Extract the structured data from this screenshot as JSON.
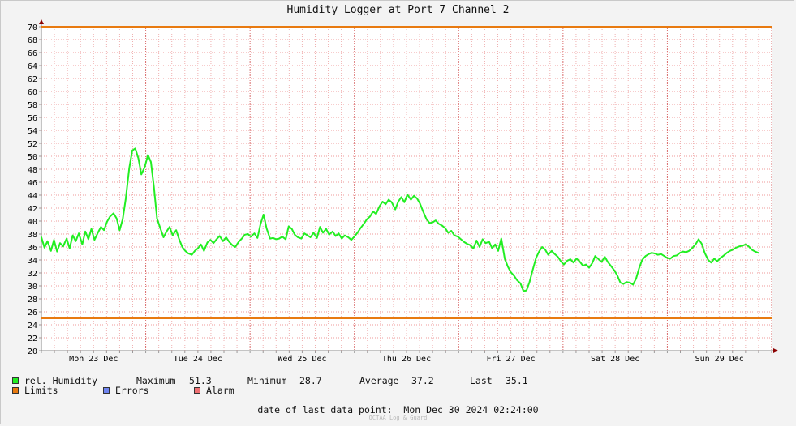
{
  "chart_data": {
    "type": "line",
    "title": "Humidity Logger at Port 7 Channel 2",
    "xlabel": "",
    "ylabel": "",
    "ylim": [
      20,
      70
    ],
    "yticks": [
      20,
      22,
      24,
      26,
      28,
      30,
      32,
      34,
      36,
      38,
      40,
      42,
      44,
      46,
      48,
      50,
      52,
      54,
      56,
      58,
      60,
      62,
      64,
      66,
      68,
      70
    ],
    "x_ticks": [
      {
        "label": "Mon 23 Dec",
        "hour": 12
      },
      {
        "label": "Tue 24 Dec",
        "hour": 36
      },
      {
        "label": "Wed 25 Dec",
        "hour": 60
      },
      {
        "label": "Thu 26 Dec",
        "hour": 84
      },
      {
        "label": "Fri 27 Dec",
        "hour": 108
      },
      {
        "label": "Sat 28 Dec",
        "hour": 132
      },
      {
        "label": "Sun 29 Dec",
        "hour": 156
      }
    ],
    "xlim_hours": [
      0,
      168
    ],
    "grid": true,
    "series": [
      {
        "name": "rel. Humidity",
        "color": "#22ee22",
        "points": [
          [
            0.0,
            37.5
          ],
          [
            0.7,
            35.9
          ],
          [
            1.4,
            36.9
          ],
          [
            2.2,
            35.4
          ],
          [
            2.9,
            37.1
          ],
          [
            3.6,
            35.3
          ],
          [
            4.3,
            36.6
          ],
          [
            5.0,
            36.1
          ],
          [
            5.8,
            37.3
          ],
          [
            6.5,
            35.8
          ],
          [
            7.2,
            37.8
          ],
          [
            7.9,
            36.9
          ],
          [
            8.6,
            38.1
          ],
          [
            9.4,
            36.4
          ],
          [
            10.1,
            38.4
          ],
          [
            10.8,
            37.2
          ],
          [
            11.5,
            38.8
          ],
          [
            12.2,
            37.1
          ],
          [
            13.0,
            38.2
          ],
          [
            13.7,
            39.1
          ],
          [
            14.4,
            38.6
          ],
          [
            15.1,
            39.9
          ],
          [
            15.8,
            40.7
          ],
          [
            16.6,
            41.2
          ],
          [
            17.3,
            40.4
          ],
          [
            18.0,
            38.6
          ],
          [
            18.7,
            40.3
          ],
          [
            19.4,
            43.4
          ],
          [
            20.2,
            48.1
          ],
          [
            20.9,
            50.9
          ],
          [
            21.6,
            51.2
          ],
          [
            22.3,
            49.7
          ],
          [
            23.0,
            47.2
          ],
          [
            23.8,
            48.4
          ],
          [
            24.5,
            50.2
          ],
          [
            25.2,
            49.1
          ],
          [
            25.9,
            45.2
          ],
          [
            26.6,
            40.4
          ],
          [
            27.4,
            38.8
          ],
          [
            28.1,
            37.5
          ],
          [
            28.8,
            38.4
          ],
          [
            29.5,
            39.1
          ],
          [
            30.2,
            37.8
          ],
          [
            31.0,
            38.6
          ],
          [
            31.7,
            37.2
          ],
          [
            32.4,
            36.0
          ],
          [
            33.1,
            35.4
          ],
          [
            33.8,
            35.0
          ],
          [
            34.6,
            34.8
          ],
          [
            35.3,
            35.4
          ],
          [
            36.0,
            35.8
          ],
          [
            36.7,
            36.4
          ],
          [
            37.4,
            35.4
          ],
          [
            38.2,
            36.7
          ],
          [
            38.9,
            37.1
          ],
          [
            39.6,
            36.6
          ],
          [
            40.3,
            37.2
          ],
          [
            41.0,
            37.7
          ],
          [
            41.8,
            36.9
          ],
          [
            42.5,
            37.5
          ],
          [
            43.2,
            36.8
          ],
          [
            43.9,
            36.3
          ],
          [
            44.6,
            36.0
          ],
          [
            45.4,
            36.8
          ],
          [
            46.1,
            37.3
          ],
          [
            46.8,
            37.9
          ],
          [
            47.5,
            38.0
          ],
          [
            48.2,
            37.6
          ],
          [
            49.0,
            38.1
          ],
          [
            49.7,
            37.4
          ],
          [
            50.4,
            39.5
          ],
          [
            51.1,
            41.0
          ],
          [
            51.8,
            38.9
          ],
          [
            52.6,
            37.3
          ],
          [
            53.3,
            37.4
          ],
          [
            54.0,
            37.2
          ],
          [
            54.7,
            37.3
          ],
          [
            55.4,
            37.6
          ],
          [
            56.2,
            37.2
          ],
          [
            56.9,
            39.2
          ],
          [
            57.6,
            38.8
          ],
          [
            58.3,
            37.9
          ],
          [
            59.0,
            37.5
          ],
          [
            59.8,
            37.3
          ],
          [
            60.5,
            38.1
          ],
          [
            61.2,
            37.8
          ],
          [
            61.9,
            37.5
          ],
          [
            62.6,
            38.2
          ],
          [
            63.4,
            37.4
          ],
          [
            64.1,
            39.1
          ],
          [
            64.8,
            38.2
          ],
          [
            65.5,
            38.8
          ],
          [
            66.2,
            37.9
          ],
          [
            67.0,
            38.4
          ],
          [
            67.7,
            37.7
          ],
          [
            68.4,
            38.1
          ],
          [
            69.1,
            37.3
          ],
          [
            69.8,
            37.8
          ],
          [
            70.6,
            37.5
          ],
          [
            71.3,
            37.1
          ],
          [
            72.0,
            37.6
          ],
          [
            72.7,
            38.2
          ],
          [
            73.4,
            38.9
          ],
          [
            74.2,
            39.6
          ],
          [
            74.9,
            40.3
          ],
          [
            75.6,
            40.7
          ],
          [
            76.3,
            41.5
          ],
          [
            77.0,
            41.1
          ],
          [
            77.8,
            42.3
          ],
          [
            78.5,
            43.0
          ],
          [
            79.2,
            42.6
          ],
          [
            79.9,
            43.3
          ],
          [
            80.6,
            42.9
          ],
          [
            81.4,
            41.8
          ],
          [
            82.1,
            43.0
          ],
          [
            82.8,
            43.7
          ],
          [
            83.5,
            42.9
          ],
          [
            84.2,
            44.1
          ],
          [
            85.0,
            43.3
          ],
          [
            85.7,
            43.9
          ],
          [
            86.4,
            43.5
          ],
          [
            87.1,
            42.7
          ],
          [
            87.8,
            41.5
          ],
          [
            88.6,
            40.3
          ],
          [
            89.3,
            39.7
          ],
          [
            90.0,
            39.8
          ],
          [
            90.7,
            40.1
          ],
          [
            91.4,
            39.6
          ],
          [
            92.2,
            39.3
          ],
          [
            92.9,
            38.9
          ],
          [
            93.6,
            38.2
          ],
          [
            94.3,
            38.5
          ],
          [
            95.0,
            37.8
          ],
          [
            95.8,
            37.6
          ],
          [
            96.5,
            37.2
          ],
          [
            97.2,
            36.8
          ],
          [
            97.9,
            36.5
          ],
          [
            98.6,
            36.3
          ],
          [
            99.4,
            35.8
          ],
          [
            100.1,
            37.0
          ],
          [
            100.8,
            36.0
          ],
          [
            101.5,
            37.2
          ],
          [
            102.2,
            36.6
          ],
          [
            103.0,
            36.8
          ],
          [
            103.7,
            35.8
          ],
          [
            104.4,
            36.4
          ],
          [
            105.1,
            35.4
          ],
          [
            105.8,
            37.3
          ],
          [
            106.6,
            34.2
          ],
          [
            107.3,
            33.0
          ],
          [
            108.0,
            32.1
          ],
          [
            108.7,
            31.6
          ],
          [
            109.4,
            30.9
          ],
          [
            110.2,
            30.4
          ],
          [
            110.9,
            29.2
          ],
          [
            111.6,
            29.3
          ],
          [
            112.3,
            30.6
          ],
          [
            113.0,
            32.4
          ],
          [
            113.8,
            34.3
          ],
          [
            114.5,
            35.3
          ],
          [
            115.2,
            36.0
          ],
          [
            115.9,
            35.6
          ],
          [
            116.6,
            34.8
          ],
          [
            117.4,
            35.4
          ],
          [
            118.1,
            34.9
          ],
          [
            118.8,
            34.5
          ],
          [
            119.5,
            33.8
          ],
          [
            120.2,
            33.3
          ],
          [
            121.0,
            33.9
          ],
          [
            121.7,
            34.1
          ],
          [
            122.4,
            33.6
          ],
          [
            123.1,
            34.2
          ],
          [
            123.8,
            33.8
          ],
          [
            124.6,
            33.1
          ],
          [
            125.3,
            33.3
          ],
          [
            126.0,
            32.8
          ],
          [
            126.7,
            33.5
          ],
          [
            127.4,
            34.6
          ],
          [
            128.2,
            34.1
          ],
          [
            128.9,
            33.7
          ],
          [
            129.6,
            34.5
          ],
          [
            130.3,
            33.7
          ],
          [
            131.0,
            33.1
          ],
          [
            131.8,
            32.4
          ],
          [
            132.5,
            31.6
          ],
          [
            133.2,
            30.5
          ],
          [
            133.9,
            30.3
          ],
          [
            134.6,
            30.6
          ],
          [
            135.4,
            30.5
          ],
          [
            136.1,
            30.2
          ],
          [
            136.8,
            31.1
          ],
          [
            137.5,
            32.7
          ],
          [
            138.2,
            34.0
          ],
          [
            139.0,
            34.6
          ],
          [
            139.7,
            34.9
          ],
          [
            140.4,
            35.1
          ],
          [
            141.1,
            35.0
          ],
          [
            141.8,
            34.8
          ],
          [
            142.6,
            34.9
          ],
          [
            143.3,
            34.6
          ],
          [
            144.0,
            34.3
          ],
          [
            144.7,
            34.2
          ],
          [
            145.4,
            34.6
          ],
          [
            146.2,
            34.7
          ],
          [
            146.9,
            35.1
          ],
          [
            147.6,
            35.3
          ],
          [
            148.3,
            35.2
          ],
          [
            149.0,
            35.4
          ],
          [
            149.8,
            35.9
          ],
          [
            150.5,
            36.4
          ],
          [
            151.2,
            37.2
          ],
          [
            151.9,
            36.5
          ],
          [
            152.6,
            35.1
          ],
          [
            153.4,
            34.0
          ],
          [
            154.1,
            33.6
          ],
          [
            154.8,
            34.2
          ],
          [
            155.5,
            33.8
          ],
          [
            156.2,
            34.3
          ],
          [
            157.0,
            34.7
          ],
          [
            157.7,
            35.1
          ],
          [
            158.4,
            35.4
          ],
          [
            159.1,
            35.6
          ],
          [
            159.8,
            35.9
          ],
          [
            160.6,
            36.1
          ],
          [
            161.3,
            36.2
          ],
          [
            162.0,
            36.4
          ],
          [
            162.7,
            36.1
          ],
          [
            163.4,
            35.6
          ],
          [
            164.2,
            35.3
          ],
          [
            164.9,
            35.1
          ]
        ]
      }
    ],
    "limits": [
      {
        "name": "Limits",
        "value": 70,
        "color": "#e87a10"
      },
      {
        "name": "Limits",
        "value": 25,
        "color": "#e87a10"
      }
    ]
  },
  "legend": {
    "humidity_label": "rel. Humidity",
    "limits_label": "Limits",
    "errors_label": "Errors",
    "alarm_label": "Alarm",
    "humidity_color": "#22ee22",
    "limits_color": "#e87a10",
    "errors_color": "#6f84f0",
    "alarm_color": "#ef6f72"
  },
  "stats": {
    "maximum_label": "Maximum",
    "maximum_value": "51.3",
    "minimum_label": "Minimum",
    "minimum_value": "28.7",
    "average_label": "Average",
    "average_value": "37.2",
    "last_label": "Last",
    "last_value": "35.1"
  },
  "footer": {
    "date_line": "date of last data point:  Mon Dec 30 2024 02:24:00",
    "watermark": "OCTAA Log & Guard"
  }
}
